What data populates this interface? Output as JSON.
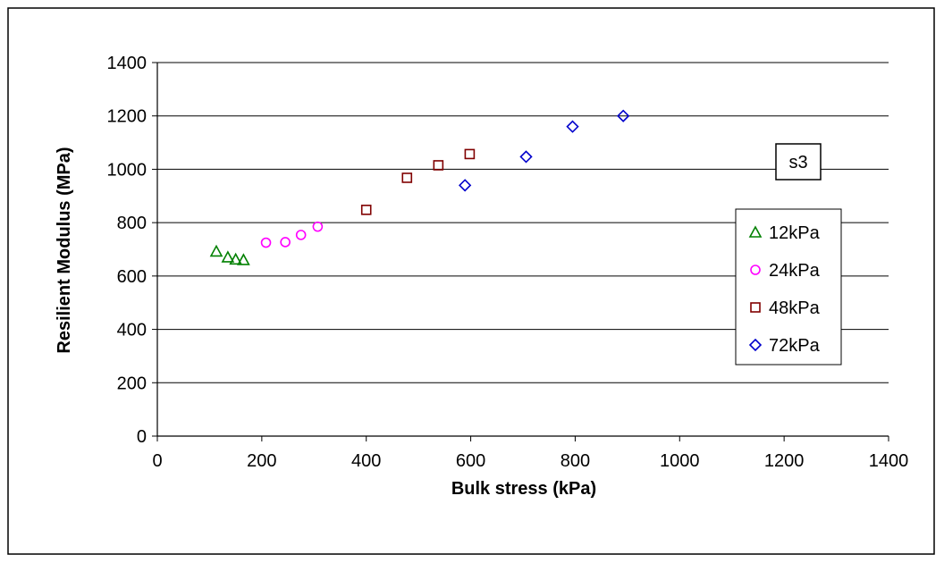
{
  "chart_data": {
    "type": "scatter",
    "title": "",
    "xlabel": "Bulk stress (kPa)",
    "ylabel": "Resilient Modulus (MPa)",
    "xlim": [
      0,
      1400
    ],
    "ylim": [
      0,
      1400
    ],
    "xticks": [
      0,
      200,
      400,
      600,
      800,
      1000,
      1200,
      1400
    ],
    "yticks": [
      0,
      200,
      400,
      600,
      800,
      1000,
      1200,
      1400
    ],
    "grid": "horizontal",
    "legend_position": "right",
    "annotation": "s3",
    "series": [
      {
        "name": "12kPa",
        "marker": "triangle",
        "color": "#008000",
        "points": [
          [
            113,
            692
          ],
          [
            135,
            670
          ],
          [
            150,
            662
          ],
          [
            165,
            660
          ]
        ]
      },
      {
        "name": "24kPa",
        "marker": "circle",
        "color": "#ff00ff",
        "points": [
          [
            208,
            725
          ],
          [
            245,
            727
          ],
          [
            275,
            754
          ],
          [
            307,
            785
          ]
        ]
      },
      {
        "name": "48kPa",
        "marker": "square",
        "color": "#800000",
        "points": [
          [
            400,
            848
          ],
          [
            478,
            968
          ],
          [
            538,
            1015
          ],
          [
            598,
            1057
          ]
        ]
      },
      {
        "name": "72kPa",
        "marker": "diamond",
        "color": "#0000cc",
        "points": [
          [
            589,
            940
          ],
          [
            706,
            1047
          ],
          [
            795,
            1160
          ],
          [
            892,
            1200
          ]
        ]
      }
    ]
  }
}
